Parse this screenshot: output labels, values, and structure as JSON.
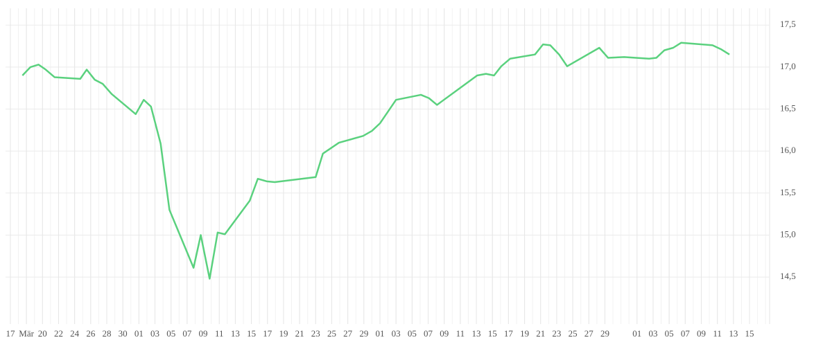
{
  "chart_data": {
    "type": "line",
    "xlim": [
      -0.6,
      94.5
    ],
    "ylim": [
      13.94,
      17.7
    ],
    "xticks": [
      {
        "value": 0,
        "label": "17"
      },
      {
        "value": 2,
        "label": "Mär"
      },
      {
        "value": 4,
        "label": "20"
      },
      {
        "value": 6,
        "label": "22"
      },
      {
        "value": 8,
        "label": "24"
      },
      {
        "value": 10,
        "label": "26"
      },
      {
        "value": 12,
        "label": "28"
      },
      {
        "value": 14,
        "label": "30"
      },
      {
        "value": 16,
        "label": "01"
      },
      {
        "value": 18,
        "label": "03"
      },
      {
        "value": 20,
        "label": "05"
      },
      {
        "value": 22,
        "label": "07"
      },
      {
        "value": 24,
        "label": "09"
      },
      {
        "value": 26,
        "label": "11"
      },
      {
        "value": 28,
        "label": "13"
      },
      {
        "value": 30,
        "label": "15"
      },
      {
        "value": 32,
        "label": "17"
      },
      {
        "value": 34,
        "label": "19"
      },
      {
        "value": 36,
        "label": "21"
      },
      {
        "value": 38,
        "label": "23"
      },
      {
        "value": 40,
        "label": "25"
      },
      {
        "value": 42,
        "label": "27"
      },
      {
        "value": 44,
        "label": "29"
      },
      {
        "value": 46,
        "label": "01"
      },
      {
        "value": 48,
        "label": "03"
      },
      {
        "value": 50,
        "label": "05"
      },
      {
        "value": 52,
        "label": "07"
      },
      {
        "value": 54,
        "label": "09"
      },
      {
        "value": 56,
        "label": "11"
      },
      {
        "value": 58,
        "label": "13"
      },
      {
        "value": 60,
        "label": "15"
      },
      {
        "value": 62,
        "label": "17"
      },
      {
        "value": 64,
        "label": "19"
      },
      {
        "value": 66,
        "label": "21"
      },
      {
        "value": 68,
        "label": "23"
      },
      {
        "value": 70,
        "label": "25"
      },
      {
        "value": 72,
        "label": "27"
      },
      {
        "value": 74,
        "label": "29"
      },
      {
        "value": 78,
        "label": "01"
      },
      {
        "value": 80,
        "label": "03"
      },
      {
        "value": 82,
        "label": "05"
      },
      {
        "value": 84,
        "label": "07"
      },
      {
        "value": 86,
        "label": "09"
      },
      {
        "value": 88,
        "label": "11"
      },
      {
        "value": 90,
        "label": "13"
      },
      {
        "value": 92,
        "label": "15"
      }
    ],
    "yticks": [
      {
        "value": 14.5,
        "label": "14,5"
      },
      {
        "value": 15,
        "label": "15,0"
      },
      {
        "value": 15.5,
        "label": "15,5"
      },
      {
        "value": 16,
        "label": "16,0"
      },
      {
        "value": 16.5,
        "label": "16,5"
      },
      {
        "value": 17,
        "label": "17,0"
      },
      {
        "value": 17.5,
        "label": "17,5"
      }
    ],
    "grid": true,
    "x": [
      1.5,
      2.5,
      3.5,
      4.4,
      5.5,
      8.7,
      9.5,
      10.5,
      11.5,
      12.6,
      15.6,
      16.6,
      17.5,
      18.7,
      19.8,
      22.8,
      23.7,
      24.8,
      25.8,
      26.7,
      29.8,
      30.8,
      31.9,
      32.9,
      38.0,
      38.9,
      40.9,
      43.9,
      45.0,
      46.0,
      48.0,
      51.1,
      52.1,
      53.1,
      58.1,
      59.2,
      60.2,
      61.1,
      62.2,
      65.3,
      66.3,
      67.2,
      68.3,
      69.3,
      73.3,
      74.4,
      76.4,
      79.5,
      80.4,
      81.4,
      82.5,
      83.5,
      87.4,
      88.5,
      89.5
    ],
    "series": [
      {
        "color": "#5ad17e",
        "values": [
          16.9,
          17.0,
          17.03,
          16.97,
          16.88,
          16.86,
          16.97,
          16.85,
          16.8,
          16.68,
          16.44,
          16.61,
          16.53,
          16.09,
          15.3,
          14.61,
          15.0,
          14.48,
          15.03,
          15.01,
          15.41,
          15.67,
          15.64,
          15.63,
          15.69,
          15.97,
          16.1,
          16.18,
          16.24,
          16.33,
          16.61,
          16.67,
          16.63,
          16.55,
          16.9,
          16.92,
          16.9,
          17.01,
          17.1,
          17.15,
          17.27,
          17.26,
          17.15,
          17.01,
          17.23,
          17.11,
          17.12,
          17.1,
          17.11,
          17.2,
          17.23,
          17.29,
          17.26,
          17.21,
          17.15
        ]
      }
    ]
  }
}
